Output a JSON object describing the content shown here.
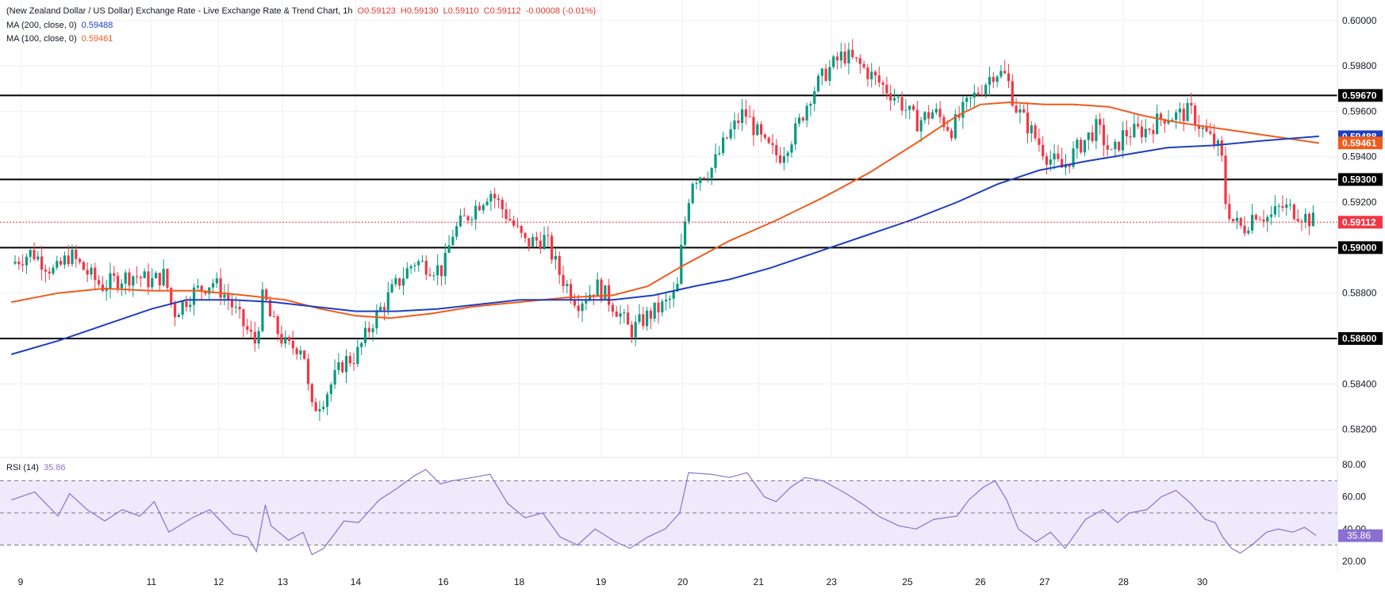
{
  "header": {
    "title": "(New Zealand Dollar / US Dollar) Exchange Rate - Live Exchange Rate & Trend Chart, 1h",
    "ohlc": {
      "o": "O0.59123",
      "h": "H0.59130",
      "l": "L0.59110",
      "c": "C0.59112",
      "change": "-0.00008 (-0.01%)"
    },
    "ma200_label": "MA (200, close, 0)",
    "ma200_value": "0.59488",
    "ma100_label": "MA (100, close, 0)",
    "ma100_value": "0.59461",
    "rsi_label": "RSI (14)",
    "rsi_value": "35.86"
  },
  "colors": {
    "up": "#089981",
    "down": "#f23645",
    "ma200": "#1e3fc2",
    "ma100": "#f05a1a",
    "rsi": "#8a6fd1",
    "rsi_band": "#efeafb",
    "grid": "#eef0f3",
    "level": "#000000",
    "price_line": "#f23645"
  },
  "chart_data": [
    {
      "type": "candlestick",
      "title": "(New Zealand Dollar / US Dollar) Exchange Rate - Live Exchange Rate & Trend Chart, 1h",
      "y_ticks": [
        "0.60000",
        "0.59800",
        "0.59600",
        "0.59400",
        "0.59200",
        "0.58800",
        "0.58600",
        "0.58400",
        "0.58200"
      ],
      "ylim": [
        0.5808,
        0.6009
      ],
      "x_ticks": [
        {
          "label": "9",
          "t": 0.16
        },
        {
          "label": "11",
          "t": 2.4
        },
        {
          "label": "12",
          "t": 3.55
        },
        {
          "label": "13",
          "t": 4.65
        },
        {
          "label": "14",
          "t": 5.9
        },
        {
          "label": "16",
          "t": 7.4
        },
        {
          "label": "18",
          "t": 8.7
        },
        {
          "label": "19",
          "t": 10.1
        },
        {
          "label": "20",
          "t": 11.5
        },
        {
          "label": "21",
          "t": 12.8
        },
        {
          "label": "23",
          "t": 14.05
        },
        {
          "label": "25",
          "t": 15.35
        },
        {
          "label": "26",
          "t": 16.6
        },
        {
          "label": "27",
          "t": 17.7
        },
        {
          "label": "28",
          "t": 19.05
        },
        {
          "label": "30",
          "t": 20.4
        }
      ],
      "horizontal_levels": [
        "0.59670",
        "0.59300",
        "0.59000",
        "0.58600"
      ],
      "last_price": "0.59112",
      "price_path": [
        [
          0.0,
          0.5893
        ],
        [
          0.35,
          0.5898
        ],
        [
          0.75,
          0.5889
        ],
        [
          1.0,
          0.5897
        ],
        [
          1.3,
          0.5889
        ],
        [
          1.55,
          0.5883
        ],
        [
          1.8,
          0.5886
        ],
        [
          2.1,
          0.5888
        ],
        [
          2.4,
          0.5885
        ],
        [
          2.62,
          0.5888
        ],
        [
          2.78,
          0.5871
        ],
        [
          3.1,
          0.588
        ],
        [
          3.45,
          0.5885
        ],
        [
          3.7,
          0.5878
        ],
        [
          3.95,
          0.5867
        ],
        [
          4.18,
          0.5858
        ],
        [
          4.32,
          0.588
        ],
        [
          4.45,
          0.5868
        ],
        [
          4.72,
          0.5856
        ],
        [
          5.0,
          0.5857
        ],
        [
          5.13,
          0.5828
        ],
        [
          5.35,
          0.5834
        ],
        [
          5.7,
          0.585
        ],
        [
          5.9,
          0.5852
        ],
        [
          6.2,
          0.5868
        ],
        [
          6.55,
          0.5882
        ],
        [
          6.9,
          0.5894
        ],
        [
          7.4,
          0.589
        ],
        [
          7.55,
          0.5906
        ],
        [
          7.95,
          0.5918
        ],
        [
          8.2,
          0.5925
        ],
        [
          8.55,
          0.5912
        ],
        [
          8.8,
          0.5902
        ],
        [
          9.15,
          0.5904
        ],
        [
          9.4,
          0.5888
        ],
        [
          9.7,
          0.5876
        ],
        [
          10.05,
          0.5883
        ],
        [
          10.4,
          0.5872
        ],
        [
          10.6,
          0.5863
        ],
        [
          10.9,
          0.587
        ],
        [
          11.2,
          0.5875
        ],
        [
          11.4,
          0.588
        ],
        [
          11.5,
          0.5905
        ],
        [
          11.65,
          0.593
        ],
        [
          12.0,
          0.5935
        ],
        [
          12.25,
          0.5948
        ],
        [
          12.55,
          0.596
        ],
        [
          12.9,
          0.5945
        ],
        [
          13.15,
          0.594
        ],
        [
          13.45,
          0.5952
        ],
        [
          13.7,
          0.5968
        ],
        [
          13.95,
          0.5977
        ],
        [
          14.25,
          0.5985
        ],
        [
          14.55,
          0.598
        ],
        [
          14.85,
          0.5973
        ],
        [
          15.2,
          0.5965
        ],
        [
          15.5,
          0.5955
        ],
        [
          15.8,
          0.596
        ],
        [
          16.1,
          0.5952
        ],
        [
          16.35,
          0.5962
        ],
        [
          16.6,
          0.597
        ],
        [
          16.85,
          0.5978
        ],
        [
          17.05,
          0.5975
        ],
        [
          17.2,
          0.5962
        ],
        [
          17.5,
          0.595
        ],
        [
          17.75,
          0.594
        ],
        [
          18.0,
          0.5935
        ],
        [
          18.3,
          0.5945
        ],
        [
          18.6,
          0.5953
        ],
        [
          18.85,
          0.594
        ],
        [
          19.05,
          0.595
        ],
        [
          19.45,
          0.5952
        ],
        [
          19.75,
          0.5958
        ],
        [
          19.95,
          0.5958
        ],
        [
          20.2,
          0.596
        ],
        [
          20.4,
          0.5952
        ],
        [
          20.6,
          0.5946
        ],
        [
          20.72,
          0.5942
        ],
        [
          20.8,
          0.592
        ],
        [
          20.92,
          0.5912
        ],
        [
          21.1,
          0.5908
        ],
        [
          21.3,
          0.5916
        ],
        [
          21.55,
          0.5913
        ],
        [
          21.75,
          0.5918
        ],
        [
          22.0,
          0.5916
        ],
        [
          22.2,
          0.5913
        ],
        [
          22.35,
          0.5911
        ]
      ],
      "series": [
        {
          "name": "MA (200, close, 0)",
          "points": [
            [
              0.0,
              0.5853
            ],
            [
              0.8,
              0.5859
            ],
            [
              1.6,
              0.5866
            ],
            [
              2.4,
              0.5873
            ],
            [
              3.0,
              0.5877
            ],
            [
              3.8,
              0.5877
            ],
            [
              4.5,
              0.5876
            ],
            [
              5.2,
              0.5874
            ],
            [
              5.9,
              0.5872
            ],
            [
              6.6,
              0.5872
            ],
            [
              7.3,
              0.5873
            ],
            [
              8.0,
              0.5875
            ],
            [
              8.7,
              0.5877
            ],
            [
              9.5,
              0.5877
            ],
            [
              10.3,
              0.5877
            ],
            [
              11.0,
              0.5879
            ],
            [
              11.7,
              0.5883
            ],
            [
              12.3,
              0.5886
            ],
            [
              13.0,
              0.5891
            ],
            [
              13.8,
              0.5898
            ],
            [
              14.6,
              0.5905
            ],
            [
              15.4,
              0.5912
            ],
            [
              16.2,
              0.592
            ],
            [
              16.9,
              0.5928
            ],
            [
              17.6,
              0.5934
            ],
            [
              18.4,
              0.5938
            ],
            [
              19.1,
              0.5941
            ],
            [
              19.8,
              0.5944
            ],
            [
              20.6,
              0.5945
            ],
            [
              21.4,
              0.5947
            ],
            [
              22.4,
              0.5949
            ]
          ]
        },
        {
          "name": "MA (100, close, 0)",
          "points": [
            [
              0.0,
              0.5876
            ],
            [
              0.8,
              0.588
            ],
            [
              1.6,
              0.5882
            ],
            [
              2.4,
              0.5881
            ],
            [
              3.2,
              0.5881
            ],
            [
              4.0,
              0.5879
            ],
            [
              4.7,
              0.5877
            ],
            [
              5.3,
              0.5873
            ],
            [
              5.9,
              0.587
            ],
            [
              6.5,
              0.5869
            ],
            [
              7.2,
              0.5871
            ],
            [
              7.9,
              0.5874
            ],
            [
              8.7,
              0.5876
            ],
            [
              9.5,
              0.5878
            ],
            [
              10.3,
              0.5879
            ],
            [
              10.9,
              0.5883
            ],
            [
              11.5,
              0.5892
            ],
            [
              12.3,
              0.5903
            ],
            [
              13.1,
              0.5912
            ],
            [
              13.9,
              0.5922
            ],
            [
              14.7,
              0.5933
            ],
            [
              15.5,
              0.5946
            ],
            [
              16.2,
              0.5958
            ],
            [
              16.6,
              0.5963
            ],
            [
              17.1,
              0.5964
            ],
            [
              17.7,
              0.5963
            ],
            [
              18.2,
              0.5963
            ],
            [
              18.8,
              0.5962
            ],
            [
              19.4,
              0.5958
            ],
            [
              20.0,
              0.5955
            ],
            [
              20.8,
              0.5952
            ],
            [
              21.6,
              0.5949
            ],
            [
              22.4,
              0.5946
            ]
          ]
        }
      ]
    },
    {
      "type": "line",
      "title": "RSI (14)",
      "y_ticks": [
        "80.00",
        "60.00",
        "40.00",
        "20.00"
      ],
      "ylim": [
        14,
        84
      ],
      "band": [
        30,
        70
      ],
      "midline": 50,
      "last_value": "35.86",
      "series": [
        {
          "name": "RSI (14)",
          "points": [
            [
              0.0,
              58
            ],
            [
              0.4,
              63
            ],
            [
              0.8,
              48
            ],
            [
              1.0,
              62
            ],
            [
              1.3,
              52
            ],
            [
              1.6,
              45
            ],
            [
              1.9,
              52
            ],
            [
              2.2,
              48
            ],
            [
              2.45,
              57
            ],
            [
              2.7,
              38
            ],
            [
              3.1,
              47
            ],
            [
              3.4,
              52
            ],
            [
              3.8,
              37
            ],
            [
              4.05,
              35
            ],
            [
              4.2,
              26
            ],
            [
              4.35,
              55
            ],
            [
              4.45,
              42
            ],
            [
              4.75,
              33
            ],
            [
              5.0,
              38
            ],
            [
              5.15,
              24
            ],
            [
              5.35,
              28
            ],
            [
              5.7,
              45
            ],
            [
              5.95,
              44
            ],
            [
              6.3,
              58
            ],
            [
              6.6,
              65
            ],
            [
              6.9,
              73
            ],
            [
              7.1,
              77
            ],
            [
              7.35,
              68
            ],
            [
              7.55,
              70
            ],
            [
              7.9,
              72
            ],
            [
              8.2,
              74
            ],
            [
              8.5,
              56
            ],
            [
              8.8,
              47
            ],
            [
              9.1,
              50
            ],
            [
              9.4,
              35
            ],
            [
              9.7,
              30
            ],
            [
              10.0,
              40
            ],
            [
              10.35,
              32
            ],
            [
              10.6,
              28
            ],
            [
              10.9,
              35
            ],
            [
              11.2,
              40
            ],
            [
              11.45,
              50
            ],
            [
              11.6,
              75
            ],
            [
              12.0,
              74
            ],
            [
              12.3,
              72
            ],
            [
              12.6,
              75
            ],
            [
              12.9,
              60
            ],
            [
              13.1,
              57
            ],
            [
              13.35,
              66
            ],
            [
              13.6,
              72
            ],
            [
              13.9,
              70
            ],
            [
              14.3,
              62
            ],
            [
              14.6,
              55
            ],
            [
              14.85,
              48
            ],
            [
              15.2,
              42
            ],
            [
              15.5,
              40
            ],
            [
              15.8,
              46
            ],
            [
              16.2,
              48
            ],
            [
              16.4,
              58
            ],
            [
              16.65,
              66
            ],
            [
              16.85,
              70
            ],
            [
              17.05,
              58
            ],
            [
              17.25,
              40
            ],
            [
              17.55,
              32
            ],
            [
              17.8,
              38
            ],
            [
              18.05,
              28
            ],
            [
              18.4,
              46
            ],
            [
              18.7,
              52
            ],
            [
              18.95,
              44
            ],
            [
              19.15,
              50
            ],
            [
              19.45,
              52
            ],
            [
              19.7,
              60
            ],
            [
              19.95,
              64
            ],
            [
              20.2,
              56
            ],
            [
              20.45,
              46
            ],
            [
              20.62,
              44
            ],
            [
              20.75,
              35
            ],
            [
              20.9,
              28
            ],
            [
              21.05,
              25
            ],
            [
              21.25,
              30
            ],
            [
              21.5,
              38
            ],
            [
              21.7,
              40
            ],
            [
              21.95,
              38
            ],
            [
              22.15,
              41
            ],
            [
              22.35,
              36
            ]
          ]
        }
      ]
    }
  ]
}
